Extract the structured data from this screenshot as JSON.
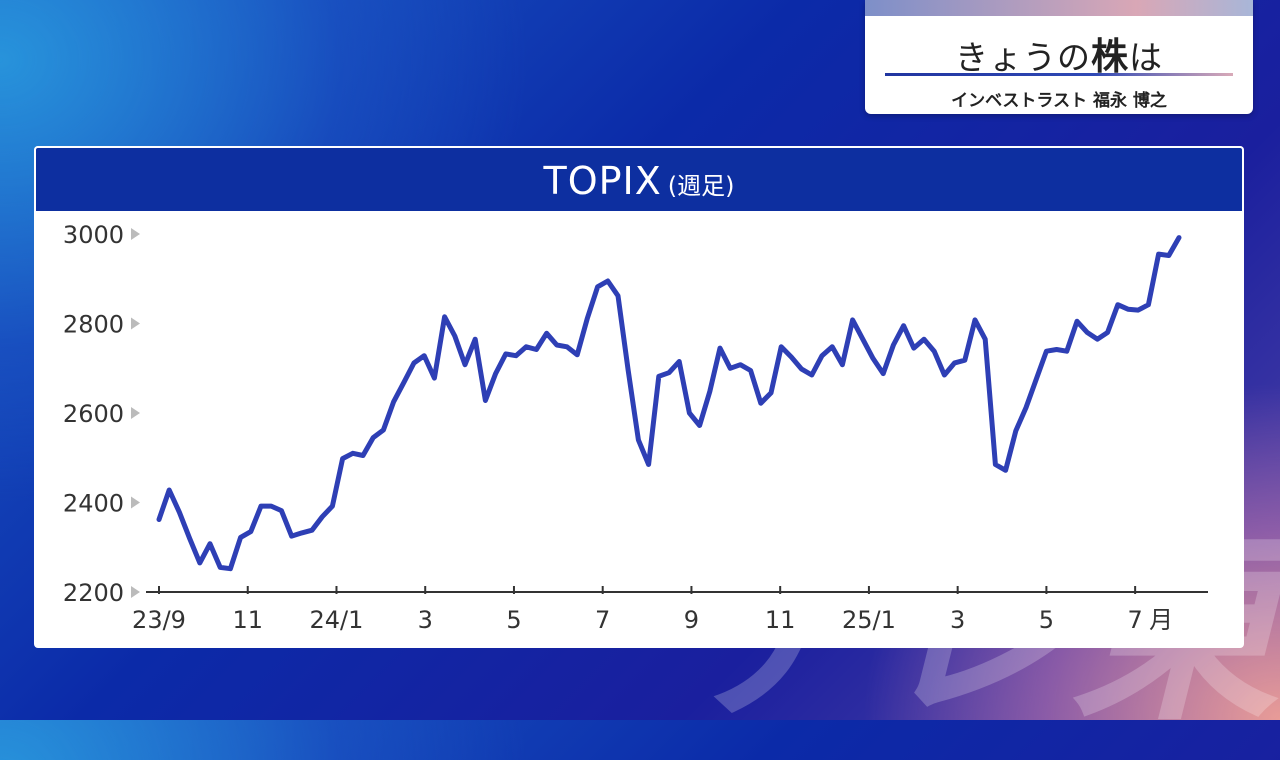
{
  "overlay": {
    "watermark": "テレ東"
  },
  "title_card": {
    "show_title_a": "きょうの",
    "show_title_b": "株",
    "show_title_c": "は",
    "presenter": "インベストラスト 福永 博之"
  },
  "chart_data": {
    "type": "line",
    "title": "TOPIX",
    "subtitle": "(週足)",
    "xlabel": "",
    "ylabel": "",
    "ylim": [
      2200,
      3000
    ],
    "yticks": [
      2200,
      2400,
      2600,
      2800,
      3000
    ],
    "xticks": [
      {
        "label": "23/9",
        "index": 0
      },
      {
        "label": "11",
        "index": 8.7
      },
      {
        "label": "24/1",
        "index": 17.4
      },
      {
        "label": "3",
        "index": 26.1
      },
      {
        "label": "5",
        "index": 34.8
      },
      {
        "label": "7",
        "index": 43.5
      },
      {
        "label": "9",
        "index": 52.2
      },
      {
        "label": "11",
        "index": 60.9
      },
      {
        "label": "25/1",
        "index": 69.6
      },
      {
        "label": "3",
        "index": 78.3
      },
      {
        "label": "5",
        "index": 87.0
      },
      {
        "label": "7",
        "index": 95.7,
        "suffix": "月"
      }
    ],
    "grid": false,
    "line_color": "#2e3fb5",
    "series": [
      {
        "values": [
          2362,
          2428,
          2378,
          2320,
          2265,
          2308,
          2255,
          2252,
          2322,
          2335,
          2392,
          2392,
          2382,
          2325,
          2332,
          2338,
          2368,
          2392,
          2498,
          2510,
          2505,
          2545,
          2562,
          2625,
          2668,
          2712,
          2728,
          2678,
          2815,
          2772,
          2708,
          2765,
          2628,
          2688,
          2732,
          2728,
          2748,
          2742,
          2778,
          2752,
          2748,
          2730,
          2812,
          2882,
          2895,
          2862,
          2695,
          2540,
          2485,
          2682,
          2690,
          2715,
          2600,
          2572,
          2648,
          2745,
          2700,
          2708,
          2695,
          2622,
          2645,
          2748,
          2725,
          2698,
          2685,
          2728,
          2748,
          2708,
          2808,
          2765,
          2722,
          2688,
          2752,
          2795,
          2745,
          2765,
          2738,
          2685,
          2712,
          2718,
          2808,
          2765,
          2485,
          2472,
          2560,
          2612,
          2675,
          2738,
          2742,
          2738,
          2805,
          2780,
          2765,
          2780,
          2842,
          2832,
          2830,
          2842,
          2955,
          2952,
          2992
        ]
      }
    ]
  }
}
